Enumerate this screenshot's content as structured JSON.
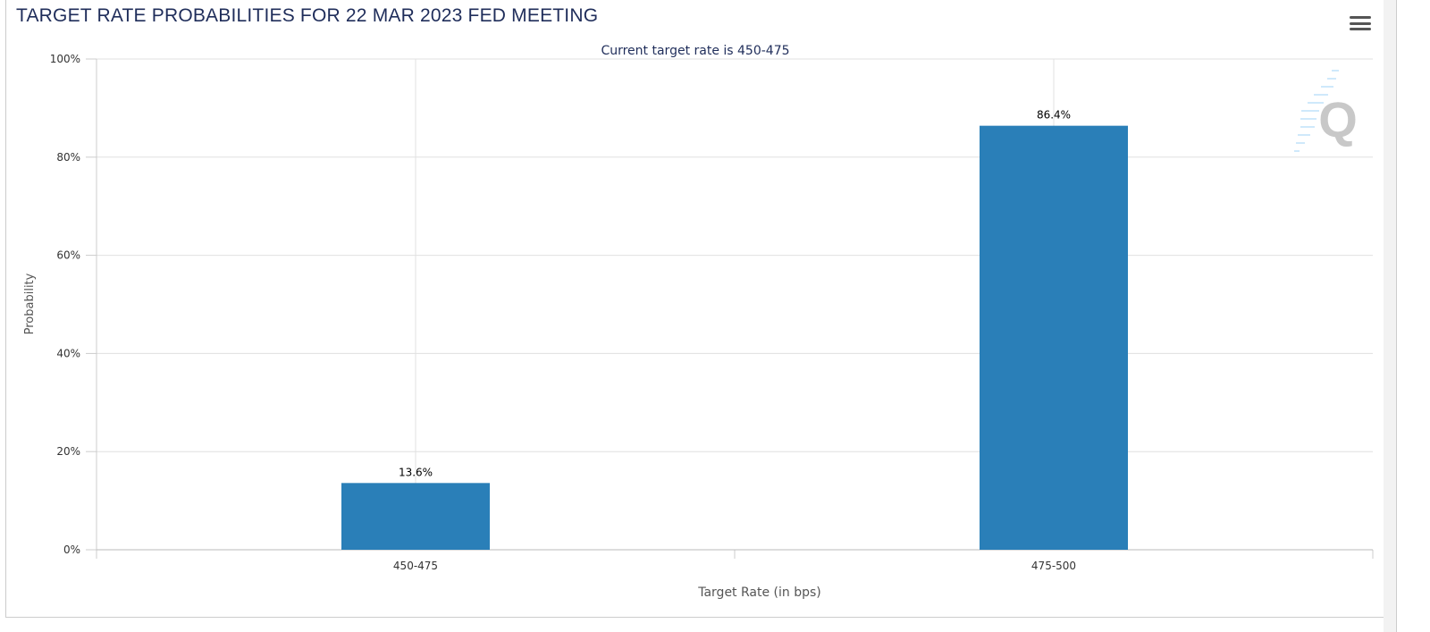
{
  "chart_data": {
    "type": "bar",
    "title": "TARGET RATE PROBABILITIES FOR 22 MAR 2023 FED MEETING",
    "subtitle": "Current target rate is 450-475",
    "xlabel": "Target Rate (in bps)",
    "ylabel": "Probability",
    "categories": [
      "450-475",
      "475-500"
    ],
    "values": [
      13.6,
      86.4
    ],
    "data_labels": [
      "13.6%",
      "86.4%"
    ],
    "ylim": [
      0,
      100
    ],
    "yticks": [
      "0%",
      "20%",
      "40%",
      "60%",
      "80%",
      "100%"
    ],
    "grid": true,
    "bar_color": "#2a7fb8"
  },
  "menu_icon": "hamburger-menu-icon",
  "watermark": "Q"
}
